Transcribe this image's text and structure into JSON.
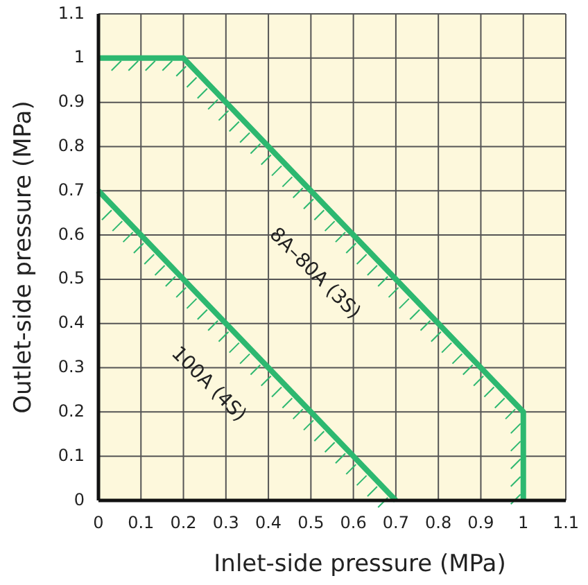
{
  "chart_data": {
    "type": "line",
    "xlabel": "Inlet-side pressure (MPa)",
    "ylabel": "Outlet-side pressure (MPa)",
    "xlim": [
      0,
      1.1
    ],
    "ylim": [
      0,
      1.1
    ],
    "xticks": [
      0,
      0.1,
      0.2,
      0.3,
      0.4,
      0.5,
      0.6,
      0.7,
      0.8,
      0.9,
      1,
      1.1
    ],
    "yticks": [
      0,
      0.1,
      0.2,
      0.3,
      0.4,
      0.5,
      0.6,
      0.7,
      0.8,
      0.9,
      1,
      1.1
    ],
    "grid": true,
    "marker": "none",
    "line_style": "solid",
    "annotations": [
      {
        "text": "8A–80A (3S)",
        "x": 0.6,
        "y": 0.6
      },
      {
        "text": "100A (4S)",
        "x": 0.35,
        "y": 0.35
      }
    ],
    "series": [
      {
        "color": "#2db870",
        "x": [
          0,
          0.2,
          1,
          1
        ],
        "values": [
          1,
          1,
          0.2,
          0
        ]
      },
      {
        "color": "#2db870",
        "x": [
          0,
          0.7
        ],
        "values": [
          0.7,
          0
        ]
      }
    ]
  }
}
